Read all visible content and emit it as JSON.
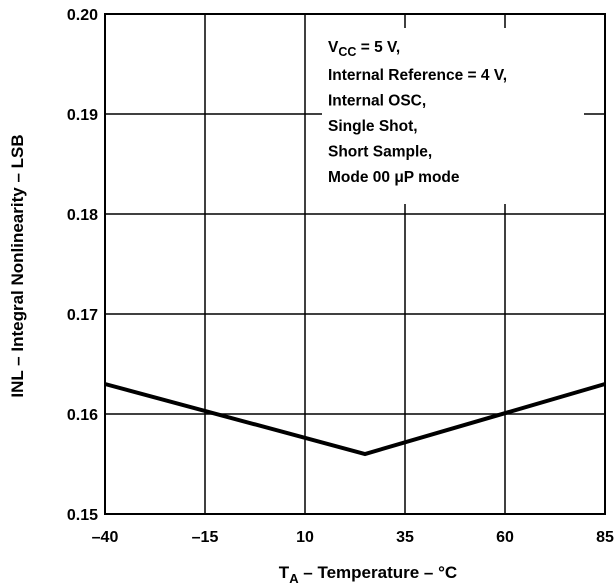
{
  "chart_data": {
    "type": "line",
    "xlabel": {
      "main": "T",
      "sub": "A",
      "rest": " – Temperature – °C"
    },
    "ylabel": "INL – Integral Nonlinearity – LSB",
    "xlim": [
      -40,
      85
    ],
    "ylim": [
      0.15,
      0.2
    ],
    "x_ticks": [
      -40,
      -15,
      10,
      35,
      60,
      85
    ],
    "x_tick_labels": [
      "–40",
      "–15",
      "10",
      "35",
      "60",
      "85"
    ],
    "y_ticks": [
      0.15,
      0.16,
      0.17,
      0.18,
      0.19,
      0.2
    ],
    "y_tick_labels": [
      "0.15",
      "0.16",
      "0.17",
      "0.18",
      "0.19",
      "0.20"
    ],
    "grid": true,
    "series": [
      {
        "x": [
          -40,
          25,
          85
        ],
        "y": [
          0.163,
          0.156,
          0.163
        ]
      }
    ],
    "annotation": {
      "vcc": {
        "main": "V",
        "sub": "CC",
        "rest": " = 5 V,"
      },
      "lines": [
        "Internal Reference = 4 V,",
        "Internal OSC,",
        "Single Shot,",
        "Short Sample,",
        "Mode 00 μP mode"
      ]
    }
  }
}
